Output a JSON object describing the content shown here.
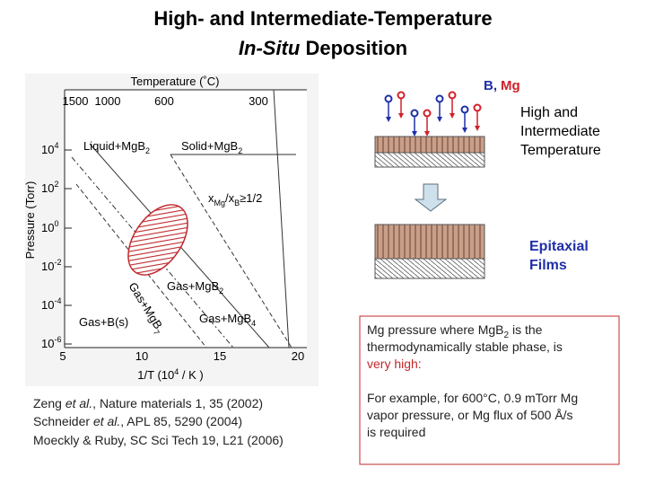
{
  "title": {
    "line1": "High- and Intermediate-Temperature",
    "line2_italic": "In-Situ",
    "line2_rest": " Deposition"
  },
  "phase_diagram": {
    "top_axis_label": "Temperature (˚C)",
    "top_ticks": [
      "1500",
      "1000",
      "600",
      "300"
    ],
    "y_axis_label": "Pressure (Torr)",
    "y_ticks": [
      {
        "base": "10",
        "exp": "4"
      },
      {
        "base": "10",
        "exp": "2"
      },
      {
        "base": "10",
        "exp": "0"
      },
      {
        "base": "10",
        "exp": "-2"
      },
      {
        "base": "10",
        "exp": "-4"
      },
      {
        "base": "10",
        "exp": "-6"
      }
    ],
    "x_ticks": [
      "5",
      "10",
      "15",
      "20"
    ],
    "x_axis_label": {
      "pre": "1/T (10",
      "sup": "4",
      "post": " / K )"
    },
    "regions": [
      {
        "text": "Liquid+MgB",
        "sub": "2"
      },
      {
        "text": "Solid+MgB",
        "sub": "2"
      },
      {
        "text": "Gas+MgB",
        "sub": "2"
      },
      {
        "text": "Gas+MgB",
        "sub": "4"
      },
      {
        "text": "Gas+MgB",
        "sub": "7"
      },
      {
        "text": "Gas+B(s)"
      }
    ],
    "ratio_label": {
      "pre": "x",
      "sub1": "Mg",
      "mid": "/x",
      "sub2": "B",
      "post": "≥1/2"
    }
  },
  "legend": {
    "b_label": "B,",
    "mg_label": "Mg"
  },
  "process": {
    "temperature_label": [
      "High and",
      "Intermediate",
      "Temperature"
    ],
    "result_label": [
      "Epitaxial",
      "Films"
    ]
  },
  "note": {
    "line1_pre": "Mg pressure where MgB",
    "line1_sub": "2",
    "line1_post": " is the",
    "line2": "thermodynamically stable phase, is",
    "line3": "very high:",
    "example": [
      "For example, for 600°C, 0.9 mTorr Mg",
      "vapor pressure, or Mg flux of 500 Å/s",
      "is required"
    ]
  },
  "references": [
    {
      "pre": "Zeng ",
      "italic": "et al.",
      "post": ", Nature materials 1, 35 (2002)"
    },
    {
      "pre": "Schneider ",
      "italic": "et al.",
      "post": ", APL 85, 5290 (2004)"
    },
    {
      "pre": "Moeckly & Ruby, SC Sci Tech 19, L21 (2006)"
    }
  ]
}
